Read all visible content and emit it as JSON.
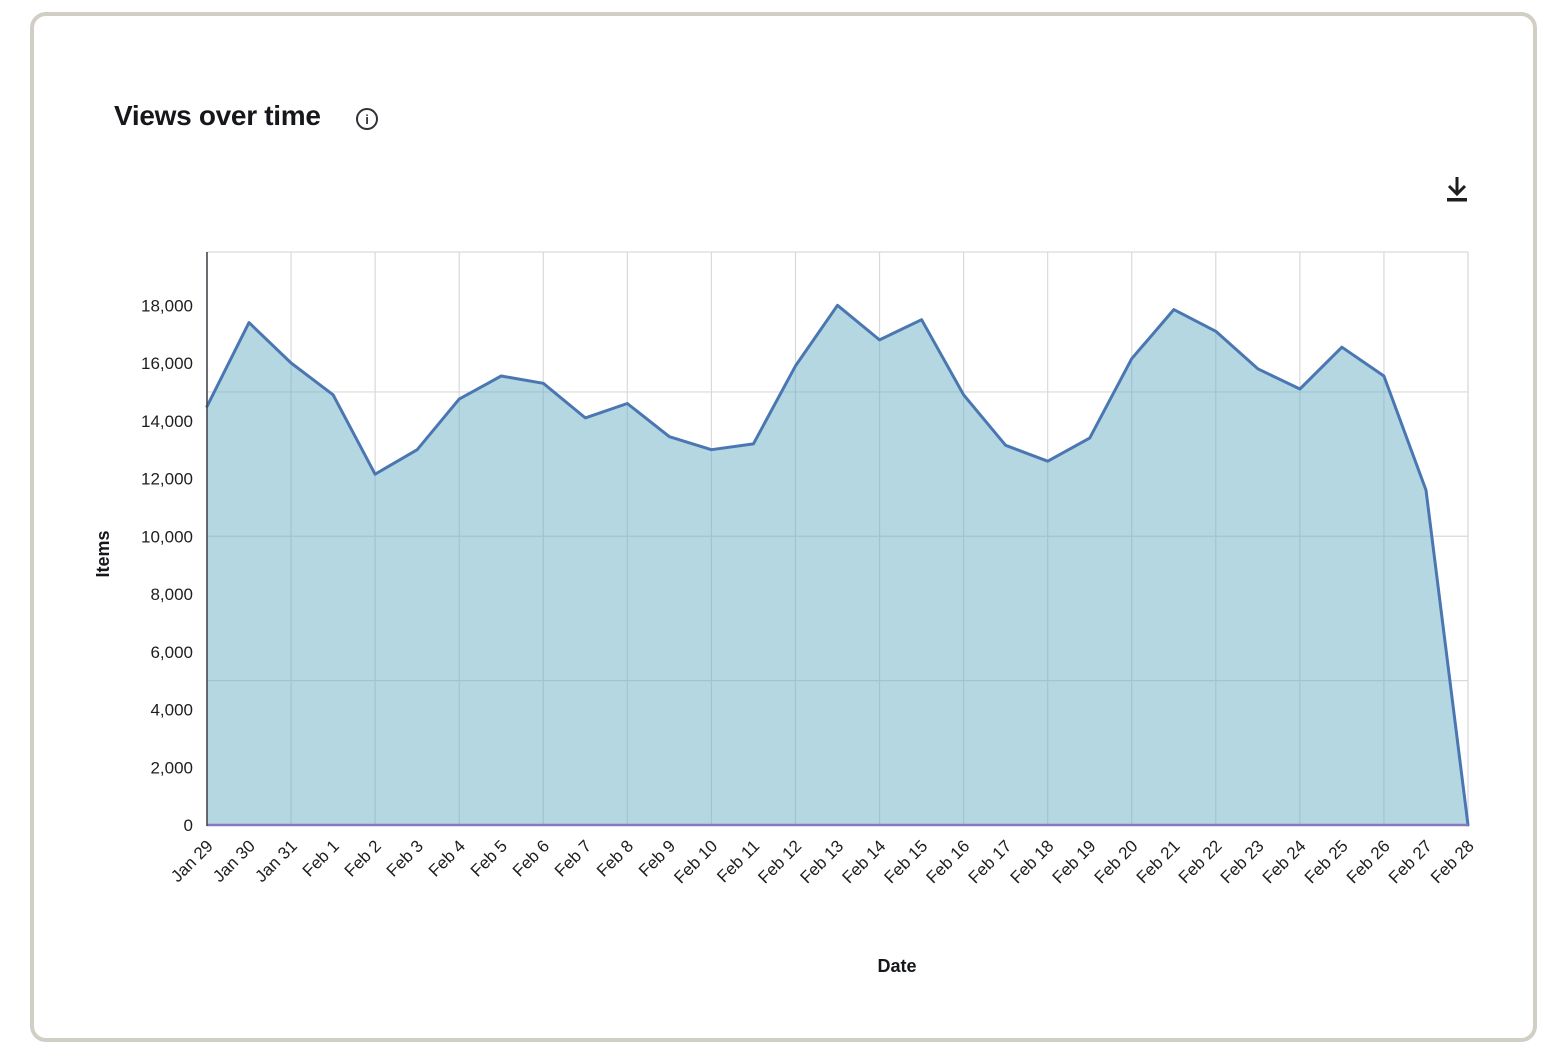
{
  "card": {
    "info_icon_glyph": "i"
  },
  "chart_data": {
    "type": "area",
    "title": "Views over time",
    "xlabel": "Date",
    "ylabel": "Items",
    "categories": [
      "Jan 29",
      "Jan 30",
      "Jan 31",
      "Feb 1",
      "Feb 2",
      "Feb 3",
      "Feb 4",
      "Feb 5",
      "Feb 6",
      "Feb 7",
      "Feb 8",
      "Feb 9",
      "Feb 10",
      "Feb 11",
      "Feb 12",
      "Feb 13",
      "Feb 14",
      "Feb 15",
      "Feb 16",
      "Feb 17",
      "Feb 18",
      "Feb 19",
      "Feb 20",
      "Feb 21",
      "Feb 22",
      "Feb 23",
      "Feb 24",
      "Feb 25",
      "Feb 26",
      "Feb 27",
      "Feb 28"
    ],
    "values": [
      14500,
      17400,
      16000,
      14900,
      12150,
      13000,
      14750,
      15550,
      15300,
      14100,
      14600,
      13450,
      13000,
      13200,
      15900,
      18000,
      16800,
      17500,
      14900,
      13150,
      12600,
      13400,
      16150,
      17850,
      17100,
      15800,
      15100,
      16550,
      15550,
      11600,
      0
    ],
    "y_ticks": {
      "values": [
        0,
        2000,
        4000,
        6000,
        8000,
        10000,
        12000,
        14000,
        16000,
        18000
      ],
      "labels": [
        "0",
        "2,000",
        "4,000",
        "6,000",
        "8,000",
        "10,000",
        "12,000",
        "14,000",
        "16,000",
        "18,000"
      ]
    },
    "h_gridline_values": [
      5000,
      10000,
      15000
    ],
    "ylim": [
      0,
      19840
    ],
    "grid": "on",
    "legend": "none",
    "colors": {
      "line": "#4a77b2",
      "fill": "rgba(107,175,197,0.5)",
      "baseline": "#8878bf",
      "y_axis": "#45474d",
      "gridline": "#d9d9d9",
      "plot_border": "#d7d9de",
      "text": "#1d1e20",
      "card_border": "#d1cec5"
    }
  }
}
